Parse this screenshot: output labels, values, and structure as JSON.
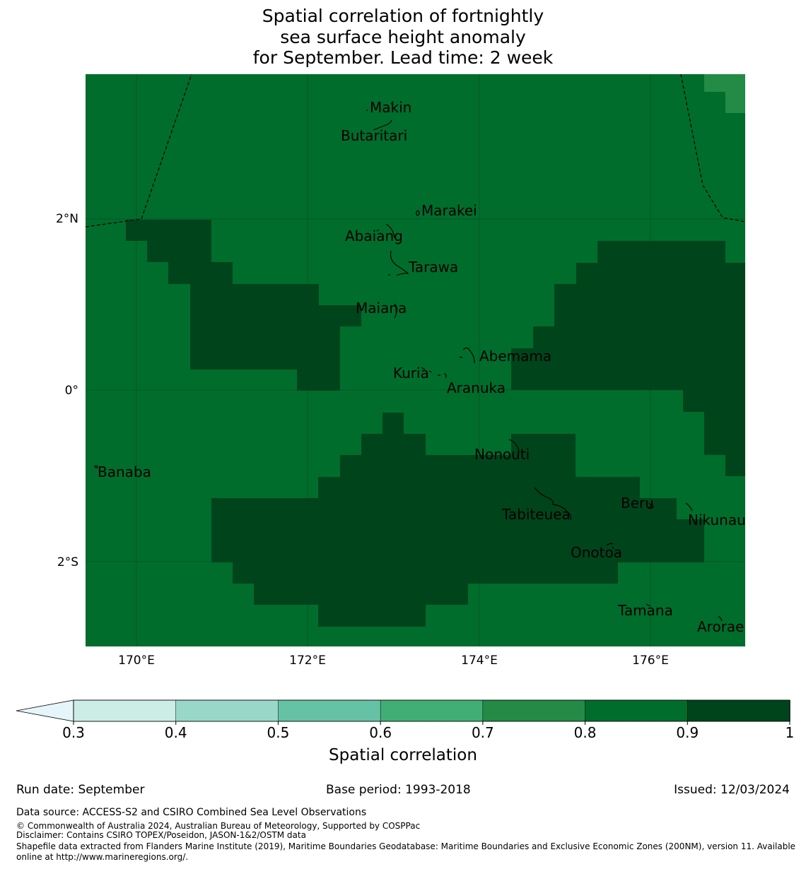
{
  "title": {
    "line1": "Spatial correlation of fortnightly",
    "line2": "sea surface height anomaly",
    "line3": "for September. Lead time: 2 week"
  },
  "map": {
    "lat_labels": [
      "2°N",
      "0°",
      "2°S"
    ],
    "lon_labels": [
      "170°E",
      "172°E",
      "174°E",
      "176°E"
    ],
    "islands": [
      "Makin",
      "Butaritari",
      "Marakei",
      "Abaiang",
      "Tarawa",
      "Maiana",
      "Abemama",
      "Kuria",
      "Aranuka",
      "Banaba",
      "Nonouti",
      "Tabiteuea",
      "Beru",
      "Nikunau",
      "Onotoa",
      "Tamana",
      "Arorae"
    ]
  },
  "colorbar": {
    "ticks": [
      "0.3",
      "0.4",
      "0.5",
      "0.6",
      "0.7",
      "0.8",
      "0.9",
      "1"
    ],
    "colors": [
      "#e5f5f9",
      "#ccece6",
      "#99d8c9",
      "#66c2a4",
      "#41ae76",
      "#238b45",
      "#006d2c",
      "#00441b"
    ],
    "label": "Spatial correlation"
  },
  "footer": {
    "run_date": "Run date: September",
    "base_period": "Base period: 1993-2018",
    "issued": "Issued: 12/03/2024",
    "data_source": "Data source: ACCESS-S2 and CSIRO Combined Sea Level Observations",
    "copyright": "© Commonwealth of Australia 2024, Australian Bureau of Meteorology, Supported by COSPPac",
    "disclaimer": "Disclaimer: Contains CSIRO TOPEX/Poseidon, JASON-1&2/OSTM data",
    "shapefile1": "Shapefile data extracted from Flanders Marine Institute (2019), Maritime Boundaries Geodatabase: Maritime Boundaries and Exclusive Economic Zones (200NM), version 11. Available",
    "shapefile2": "online at http://www.marineregions.org/."
  }
}
